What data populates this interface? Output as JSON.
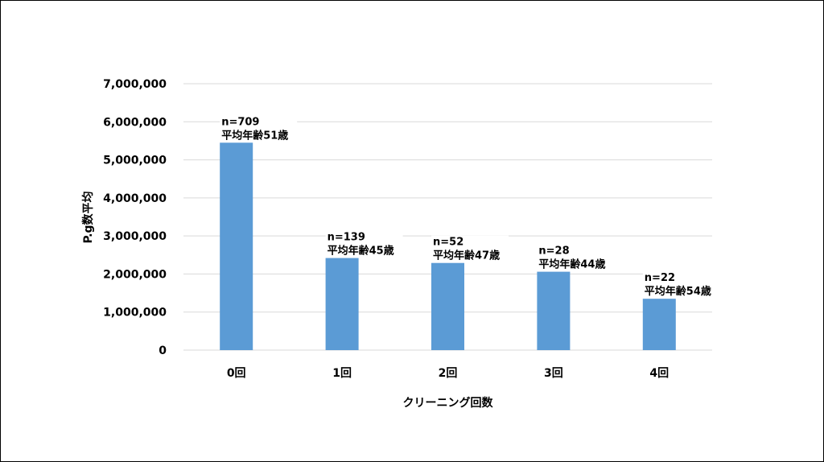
{
  "chart_data": {
    "type": "bar",
    "title": "",
    "xlabel": "クリーニング回数",
    "ylabel": "P.g数平均",
    "ylim": [
      0,
      7000000
    ],
    "yticks": [
      0,
      1000000,
      2000000,
      3000000,
      4000000,
      5000000,
      6000000,
      7000000
    ],
    "ytick_labels": [
      "0",
      "1,000,000",
      "2,000,000",
      "3,000,000",
      "4,000,000",
      "5,000,000",
      "6,000,000",
      "7,000,000"
    ],
    "categories": [
      "0回",
      "1回",
      "2回",
      "3回",
      "4回"
    ],
    "values": [
      5450000,
      2420000,
      2290000,
      2060000,
      1350000
    ],
    "annotations": [
      {
        "n": "n=709",
        "age": "平均年齢51歳"
      },
      {
        "n": "n=139",
        "age": "平均年齢45歳"
      },
      {
        "n": "n=52",
        "age": "平均年齢47歳"
      },
      {
        "n": "n=28",
        "age": "平均年齢44歳"
      },
      {
        "n": "n=22",
        "age": "平均年齢54歳"
      }
    ],
    "grid": true,
    "bar_color": "#5b9bd5",
    "grid_color": "#d9d9d9"
  }
}
